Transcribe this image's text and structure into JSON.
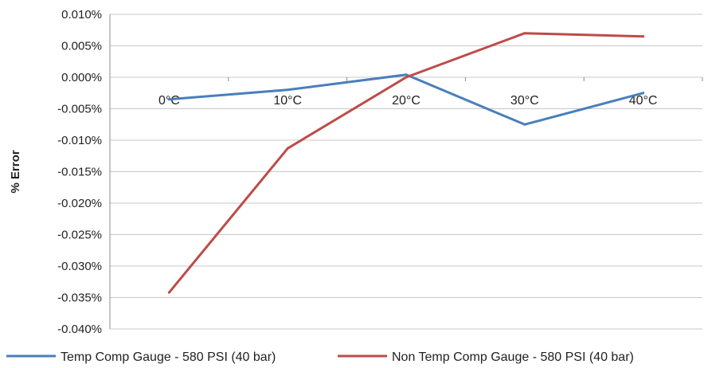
{
  "chart_data": {
    "type": "line",
    "categories": [
      "0°C",
      "10°C",
      "20°C",
      "30°C",
      "40°C"
    ],
    "series": [
      {
        "name": "Temp Comp Gauge - 580 PSI (40 bar)",
        "values": [
          -0.0035,
          -0.002,
          0.0004,
          -0.0075,
          -0.0025
        ],
        "color": "#4a7ebb"
      },
      {
        "name": "Non Temp Comp Gauge - 580 PSI (40 bar)",
        "values": [
          -0.0342,
          -0.0113,
          0.0,
          0.007,
          0.0065
        ],
        "color": "#be4b48"
      }
    ],
    "ylabel": "% Error",
    "ylim": [
      -0.04,
      0.01
    ],
    "yticks": [
      0.01,
      0.005,
      0.0,
      -0.005,
      -0.01,
      -0.015,
      -0.02,
      -0.025,
      -0.03,
      -0.035,
      -0.04
    ],
    "ytick_labels": [
      "0.010%",
      "0.005%",
      "0.000%",
      "-0.005%",
      "-0.010%",
      "-0.015%",
      "-0.020%",
      "-0.025%",
      "-0.030%",
      "-0.035%",
      "-0.040%"
    ],
    "grid": true,
    "legend": "bottom"
  }
}
